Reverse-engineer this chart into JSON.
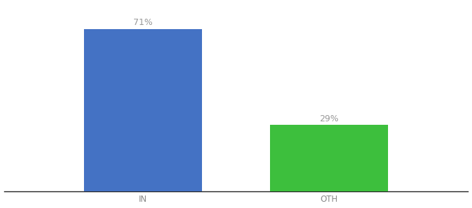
{
  "categories": [
    "IN",
    "OTH"
  ],
  "values": [
    71,
    29
  ],
  "bar_colors": [
    "#4472C4",
    "#3DBF3D"
  ],
  "label_texts": [
    "71%",
    "29%"
  ],
  "background_color": "#ffffff",
  "text_color": "#999999",
  "tick_label_color": "#888888",
  "bar_width": 0.28,
  "ylim": [
    0,
    82
  ],
  "xlim": [
    -0.05,
    1.05
  ],
  "x_positions": [
    0.28,
    0.72
  ],
  "label_fontsize": 9,
  "tick_fontsize": 8.5,
  "spine_color": "#222222"
}
